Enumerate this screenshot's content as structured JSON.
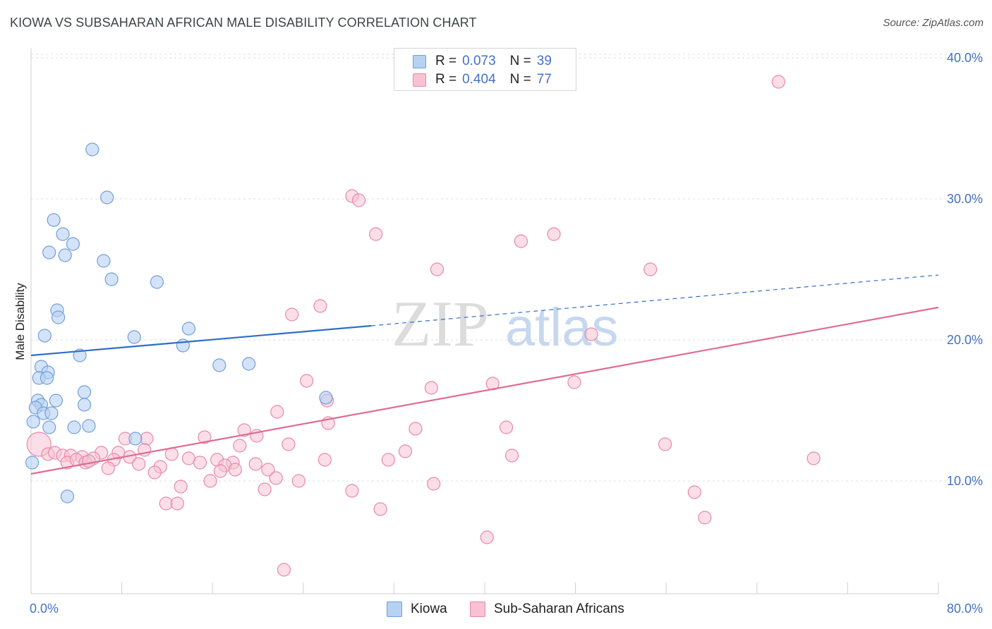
{
  "header": {
    "title": "KIOWA VS SUBSAHARAN AFRICAN MALE DISABILITY CORRELATION CHART",
    "source": "Source: ZipAtlas.com"
  },
  "watermark": {
    "zip": "ZIP",
    "atlas": "atlas"
  },
  "legend": {
    "kiowa": {
      "r_label": "R =",
      "r_value": "0.073",
      "n_label": "N =",
      "n_value": "39"
    },
    "subsaharan": {
      "r_label": "R =",
      "r_value": "0.404",
      "n_label": "N =",
      "n_value": "77"
    }
  },
  "bottom_legend": {
    "kiowa": "Kiowa",
    "subsaharan": "Sub-Saharan Africans"
  },
  "colors": {
    "kiowa_fill": "#b7d1f3",
    "kiowa_stroke": "#6f9fdc",
    "kiowa_line": "#2f6fc6",
    "sub_fill": "#f8c2d3",
    "sub_stroke": "#e888a8",
    "sub_line": "#e06b94",
    "tick_text": "#4472c4",
    "grid": "#dddddd"
  },
  "chart_data": {
    "type": "scatter",
    "title": "KIOWA VS SUBSAHARAN AFRICAN MALE DISABILITY CORRELATION CHART",
    "xlabel": "",
    "ylabel": "Male Disability",
    "xlim": [
      0,
      80
    ],
    "ylim": [
      2,
      41
    ],
    "x_tick_labels": [
      "0.0%",
      "80.0%"
    ],
    "y_ticks": [
      10,
      20,
      30,
      40
    ],
    "y_tick_labels": [
      "10.0%",
      "20.0%",
      "30.0%",
      "40.0%"
    ],
    "grid": "horizontal dashed",
    "legend_position": "top-center",
    "series": [
      {
        "name": "Kiowa",
        "r": 0.073,
        "n": 39,
        "trend": {
          "x0": 0,
          "y0": 18.9,
          "x1": 30,
          "y1": 21.0,
          "dashed_to_x": 80,
          "dashed_to_y": 24.6
        },
        "points": [
          [
            5.4,
            33.5
          ],
          [
            6.7,
            30.1
          ],
          [
            2.0,
            28.5
          ],
          [
            2.8,
            27.5
          ],
          [
            3.7,
            26.8
          ],
          [
            1.6,
            26.2
          ],
          [
            3.0,
            26.0
          ],
          [
            6.4,
            25.6
          ],
          [
            7.1,
            24.3
          ],
          [
            11.1,
            24.1
          ],
          [
            2.3,
            22.1
          ],
          [
            2.4,
            21.6
          ],
          [
            13.9,
            20.8
          ],
          [
            1.2,
            20.3
          ],
          [
            9.1,
            20.2
          ],
          [
            13.4,
            19.6
          ],
          [
            4.3,
            18.9
          ],
          [
            16.6,
            18.2
          ],
          [
            19.2,
            18.3
          ],
          [
            0.9,
            18.1
          ],
          [
            1.5,
            17.7
          ],
          [
            0.7,
            17.3
          ],
          [
            1.4,
            17.3
          ],
          [
            4.7,
            16.3
          ],
          [
            26.0,
            15.9
          ],
          [
            0.6,
            15.7
          ],
          [
            2.2,
            15.7
          ],
          [
            0.9,
            15.4
          ],
          [
            0.4,
            15.2
          ],
          [
            4.7,
            15.4
          ],
          [
            1.1,
            14.8
          ],
          [
            1.8,
            14.8
          ],
          [
            0.2,
            14.2
          ],
          [
            1.6,
            13.8
          ],
          [
            3.8,
            13.8
          ],
          [
            5.1,
            13.9
          ],
          [
            9.2,
            13.0
          ],
          [
            0.1,
            11.3
          ],
          [
            3.2,
            8.9
          ]
        ]
      },
      {
        "name": "Sub-Saharan Africans",
        "r": 0.404,
        "n": 77,
        "trend": {
          "x0": 0,
          "y0": 10.5,
          "x1": 80,
          "y1": 22.3
        },
        "points": [
          [
            65.9,
            38.3
          ],
          [
            28.3,
            30.2
          ],
          [
            28.9,
            29.9
          ],
          [
            30.4,
            27.5
          ],
          [
            46.1,
            27.5
          ],
          [
            43.2,
            27.0
          ],
          [
            35.8,
            25.0
          ],
          [
            54.6,
            25.0
          ],
          [
            25.5,
            22.4
          ],
          [
            23.0,
            21.8
          ],
          [
            49.4,
            20.4
          ],
          [
            24.3,
            17.1
          ],
          [
            40.7,
            16.9
          ],
          [
            47.9,
            17.0
          ],
          [
            35.3,
            16.6
          ],
          [
            26.1,
            15.7
          ],
          [
            21.7,
            14.9
          ],
          [
            33.9,
            13.7
          ],
          [
            41.9,
            13.8
          ],
          [
            18.8,
            13.6
          ],
          [
            19.9,
            13.2
          ],
          [
            15.3,
            13.1
          ],
          [
            8.3,
            13.0
          ],
          [
            10.2,
            13.0
          ],
          [
            22.7,
            12.6
          ],
          [
            18.4,
            12.5
          ],
          [
            55.9,
            12.6
          ],
          [
            10.0,
            12.2
          ],
          [
            6.2,
            12.0
          ],
          [
            7.7,
            12.0
          ],
          [
            12.4,
            11.9
          ],
          [
            33.0,
            12.1
          ],
          [
            0.7,
            12.6
          ],
          [
            1.5,
            11.9
          ],
          [
            2.1,
            12.0
          ],
          [
            2.8,
            11.8
          ],
          [
            3.5,
            11.8
          ],
          [
            4.5,
            11.7
          ],
          [
            5.5,
            11.6
          ],
          [
            3.2,
            11.3
          ],
          [
            4.0,
            11.5
          ],
          [
            4.8,
            11.3
          ],
          [
            5.1,
            11.4
          ],
          [
            7.3,
            11.5
          ],
          [
            8.7,
            11.7
          ],
          [
            13.9,
            11.6
          ],
          [
            16.4,
            11.5
          ],
          [
            17.8,
            11.3
          ],
          [
            25.9,
            11.5
          ],
          [
            31.5,
            11.5
          ],
          [
            42.4,
            11.8
          ],
          [
            69.0,
            11.6
          ],
          [
            9.5,
            11.2
          ],
          [
            14.9,
            11.3
          ],
          [
            17.1,
            11.1
          ],
          [
            11.4,
            11.0
          ],
          [
            19.8,
            11.2
          ],
          [
            6.8,
            10.9
          ],
          [
            16.7,
            10.7
          ],
          [
            20.9,
            10.8
          ],
          [
            10.9,
            10.6
          ],
          [
            21.6,
            10.2
          ],
          [
            15.8,
            10.0
          ],
          [
            23.6,
            10.0
          ],
          [
            35.5,
            9.8
          ],
          [
            13.2,
            9.6
          ],
          [
            20.6,
            9.4
          ],
          [
            28.3,
            9.3
          ],
          [
            58.5,
            9.2
          ],
          [
            11.9,
            8.4
          ],
          [
            12.9,
            8.4
          ],
          [
            30.8,
            8.0
          ],
          [
            59.4,
            7.4
          ],
          [
            40.2,
            6.0
          ],
          [
            22.3,
            3.7
          ],
          [
            18.0,
            10.8
          ],
          [
            26.2,
            14.1
          ]
        ]
      }
    ]
  }
}
